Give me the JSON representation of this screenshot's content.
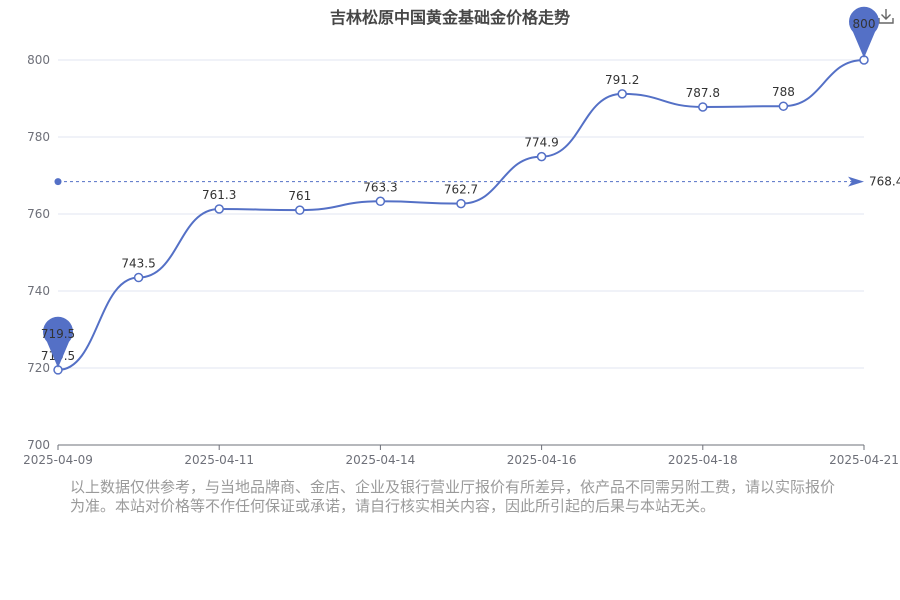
{
  "chart_data": {
    "type": "line",
    "title": "吉林松原中国黄金基础金价格走势",
    "x": [
      "2025-04-09",
      "2025-04-10",
      "2025-04-11",
      "2025-04-12",
      "2025-04-14",
      "2025-04-15",
      "2025-04-16",
      "2025-04-17",
      "2025-04-18",
      "2025-04-19",
      "2025-04-21"
    ],
    "values": [
      719.5,
      743.5,
      761.3,
      761,
      763.3,
      762.7,
      774.9,
      791.2,
      787.8,
      788,
      800
    ],
    "x_tick_labels": [
      "2025-04-09",
      "2025-04-11",
      "2025-04-14",
      "2025-04-16",
      "2025-04-18",
      "2025-04-21"
    ],
    "ylim": [
      700,
      800
    ],
    "y_ticks": [
      700,
      720,
      740,
      760,
      780,
      800
    ],
    "average_line": {
      "value": 768.4,
      "label": "768.4"
    },
    "markers": {
      "min": {
        "label": "719.5"
      },
      "max": {
        "label": "800"
      }
    },
    "line_color": "#5470c6",
    "grid": true
  },
  "disclaimer": "以上数据仅供参考，与当地品牌商、金店、企业及银行营业厅报价有所差异，依产品不同需另附工费，请以实际报价为准。本站对价格等不作任何保证或承诺，请自行核实相关内容，因此所引起的后果与本站无关。",
  "toolbar": {
    "download_icon": "download-icon"
  }
}
